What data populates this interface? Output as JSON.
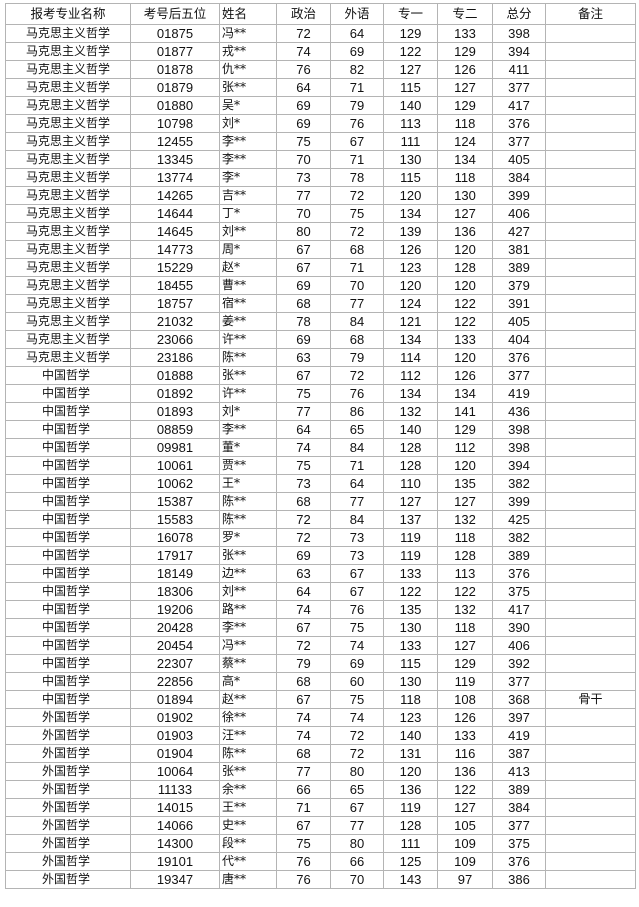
{
  "headers": [
    "报考专业名称",
    "考号后五位",
    "姓名",
    "政治",
    "外语",
    "专一",
    "专二",
    "总分",
    "备注"
  ],
  "rows": [
    [
      "马克思主义哲学",
      "01875",
      "冯**",
      "72",
      "64",
      "129",
      "133",
      "398",
      ""
    ],
    [
      "马克思主义哲学",
      "01877",
      "戎**",
      "74",
      "69",
      "122",
      "129",
      "394",
      ""
    ],
    [
      "马克思主义哲学",
      "01878",
      "仇**",
      "76",
      "82",
      "127",
      "126",
      "411",
      ""
    ],
    [
      "马克思主义哲学",
      "01879",
      "张**",
      "64",
      "71",
      "115",
      "127",
      "377",
      ""
    ],
    [
      "马克思主义哲学",
      "01880",
      "吴*",
      "69",
      "79",
      "140",
      "129",
      "417",
      ""
    ],
    [
      "马克思主义哲学",
      "10798",
      "刘*",
      "69",
      "76",
      "113",
      "118",
      "376",
      ""
    ],
    [
      "马克思主义哲学",
      "12455",
      "李**",
      "75",
      "67",
      "111",
      "124",
      "377",
      ""
    ],
    [
      "马克思主义哲学",
      "13345",
      "李**",
      "70",
      "71",
      "130",
      "134",
      "405",
      ""
    ],
    [
      "马克思主义哲学",
      "13774",
      "李*",
      "73",
      "78",
      "115",
      "118",
      "384",
      ""
    ],
    [
      "马克思主义哲学",
      "14265",
      "吉**",
      "77",
      "72",
      "120",
      "130",
      "399",
      ""
    ],
    [
      "马克思主义哲学",
      "14644",
      "丁*",
      "70",
      "75",
      "134",
      "127",
      "406",
      ""
    ],
    [
      "马克思主义哲学",
      "14645",
      "刘**",
      "80",
      "72",
      "139",
      "136",
      "427",
      ""
    ],
    [
      "马克思主义哲学",
      "14773",
      "周*",
      "67",
      "68",
      "126",
      "120",
      "381",
      ""
    ],
    [
      "马克思主义哲学",
      "15229",
      "赵*",
      "67",
      "71",
      "123",
      "128",
      "389",
      ""
    ],
    [
      "马克思主义哲学",
      "18455",
      "曹**",
      "69",
      "70",
      "120",
      "120",
      "379",
      ""
    ],
    [
      "马克思主义哲学",
      "18757",
      "宿**",
      "68",
      "77",
      "124",
      "122",
      "391",
      ""
    ],
    [
      "马克思主义哲学",
      "21032",
      "姜**",
      "78",
      "84",
      "121",
      "122",
      "405",
      ""
    ],
    [
      "马克思主义哲学",
      "23066",
      "许**",
      "69",
      "68",
      "134",
      "133",
      "404",
      ""
    ],
    [
      "马克思主义哲学",
      "23186",
      "陈**",
      "63",
      "79",
      "114",
      "120",
      "376",
      ""
    ],
    [
      "中国哲学",
      "01888",
      "张**",
      "67",
      "72",
      "112",
      "126",
      "377",
      ""
    ],
    [
      "中国哲学",
      "01892",
      "许**",
      "75",
      "76",
      "134",
      "134",
      "419",
      ""
    ],
    [
      "中国哲学",
      "01893",
      "刘*",
      "77",
      "86",
      "132",
      "141",
      "436",
      ""
    ],
    [
      "中国哲学",
      "08859",
      "李**",
      "64",
      "65",
      "140",
      "129",
      "398",
      ""
    ],
    [
      "中国哲学",
      "09981",
      "董*",
      "74",
      "84",
      "128",
      "112",
      "398",
      ""
    ],
    [
      "中国哲学",
      "10061",
      "贾**",
      "75",
      "71",
      "128",
      "120",
      "394",
      ""
    ],
    [
      "中国哲学",
      "10062",
      "王*",
      "73",
      "64",
      "110",
      "135",
      "382",
      ""
    ],
    [
      "中国哲学",
      "15387",
      "陈**",
      "68",
      "77",
      "127",
      "127",
      "399",
      ""
    ],
    [
      "中国哲学",
      "15583",
      "陈**",
      "72",
      "84",
      "137",
      "132",
      "425",
      ""
    ],
    [
      "中国哲学",
      "16078",
      "罗*",
      "72",
      "73",
      "119",
      "118",
      "382",
      ""
    ],
    [
      "中国哲学",
      "17917",
      "张**",
      "69",
      "73",
      "119",
      "128",
      "389",
      ""
    ],
    [
      "中国哲学",
      "18149",
      "边**",
      "63",
      "67",
      "133",
      "113",
      "376",
      ""
    ],
    [
      "中国哲学",
      "18306",
      "刘**",
      "64",
      "67",
      "122",
      "122",
      "375",
      ""
    ],
    [
      "中国哲学",
      "19206",
      "路**",
      "74",
      "76",
      "135",
      "132",
      "417",
      ""
    ],
    [
      "中国哲学",
      "20428",
      "李**",
      "67",
      "75",
      "130",
      "118",
      "390",
      ""
    ],
    [
      "中国哲学",
      "20454",
      "冯**",
      "72",
      "74",
      "133",
      "127",
      "406",
      ""
    ],
    [
      "中国哲学",
      "22307",
      "蔡**",
      "79",
      "69",
      "115",
      "129",
      "392",
      ""
    ],
    [
      "中国哲学",
      "22856",
      "高*",
      "68",
      "60",
      "130",
      "119",
      "377",
      ""
    ],
    [
      "中国哲学",
      "01894",
      "赵**",
      "67",
      "75",
      "118",
      "108",
      "368",
      "骨干"
    ],
    [
      "外国哲学",
      "01902",
      "徐**",
      "74",
      "74",
      "123",
      "126",
      "397",
      ""
    ],
    [
      "外国哲学",
      "01903",
      "汪**",
      "74",
      "72",
      "140",
      "133",
      "419",
      ""
    ],
    [
      "外国哲学",
      "01904",
      "陈**",
      "68",
      "72",
      "131",
      "116",
      "387",
      ""
    ],
    [
      "外国哲学",
      "10064",
      "张**",
      "77",
      "80",
      "120",
      "136",
      "413",
      ""
    ],
    [
      "外国哲学",
      "11133",
      "余**",
      "66",
      "65",
      "136",
      "122",
      "389",
      ""
    ],
    [
      "外国哲学",
      "14015",
      "王**",
      "71",
      "67",
      "119",
      "127",
      "384",
      ""
    ],
    [
      "外国哲学",
      "14066",
      "史**",
      "67",
      "77",
      "128",
      "105",
      "377",
      ""
    ],
    [
      "外国哲学",
      "14300",
      "段**",
      "75",
      "80",
      "111",
      "109",
      "375",
      ""
    ],
    [
      "外国哲学",
      "19101",
      "代**",
      "76",
      "66",
      "125",
      "109",
      "376",
      ""
    ],
    [
      "外国哲学",
      "19347",
      "唐**",
      "76",
      "70",
      "143",
      "97",
      "386",
      ""
    ]
  ]
}
